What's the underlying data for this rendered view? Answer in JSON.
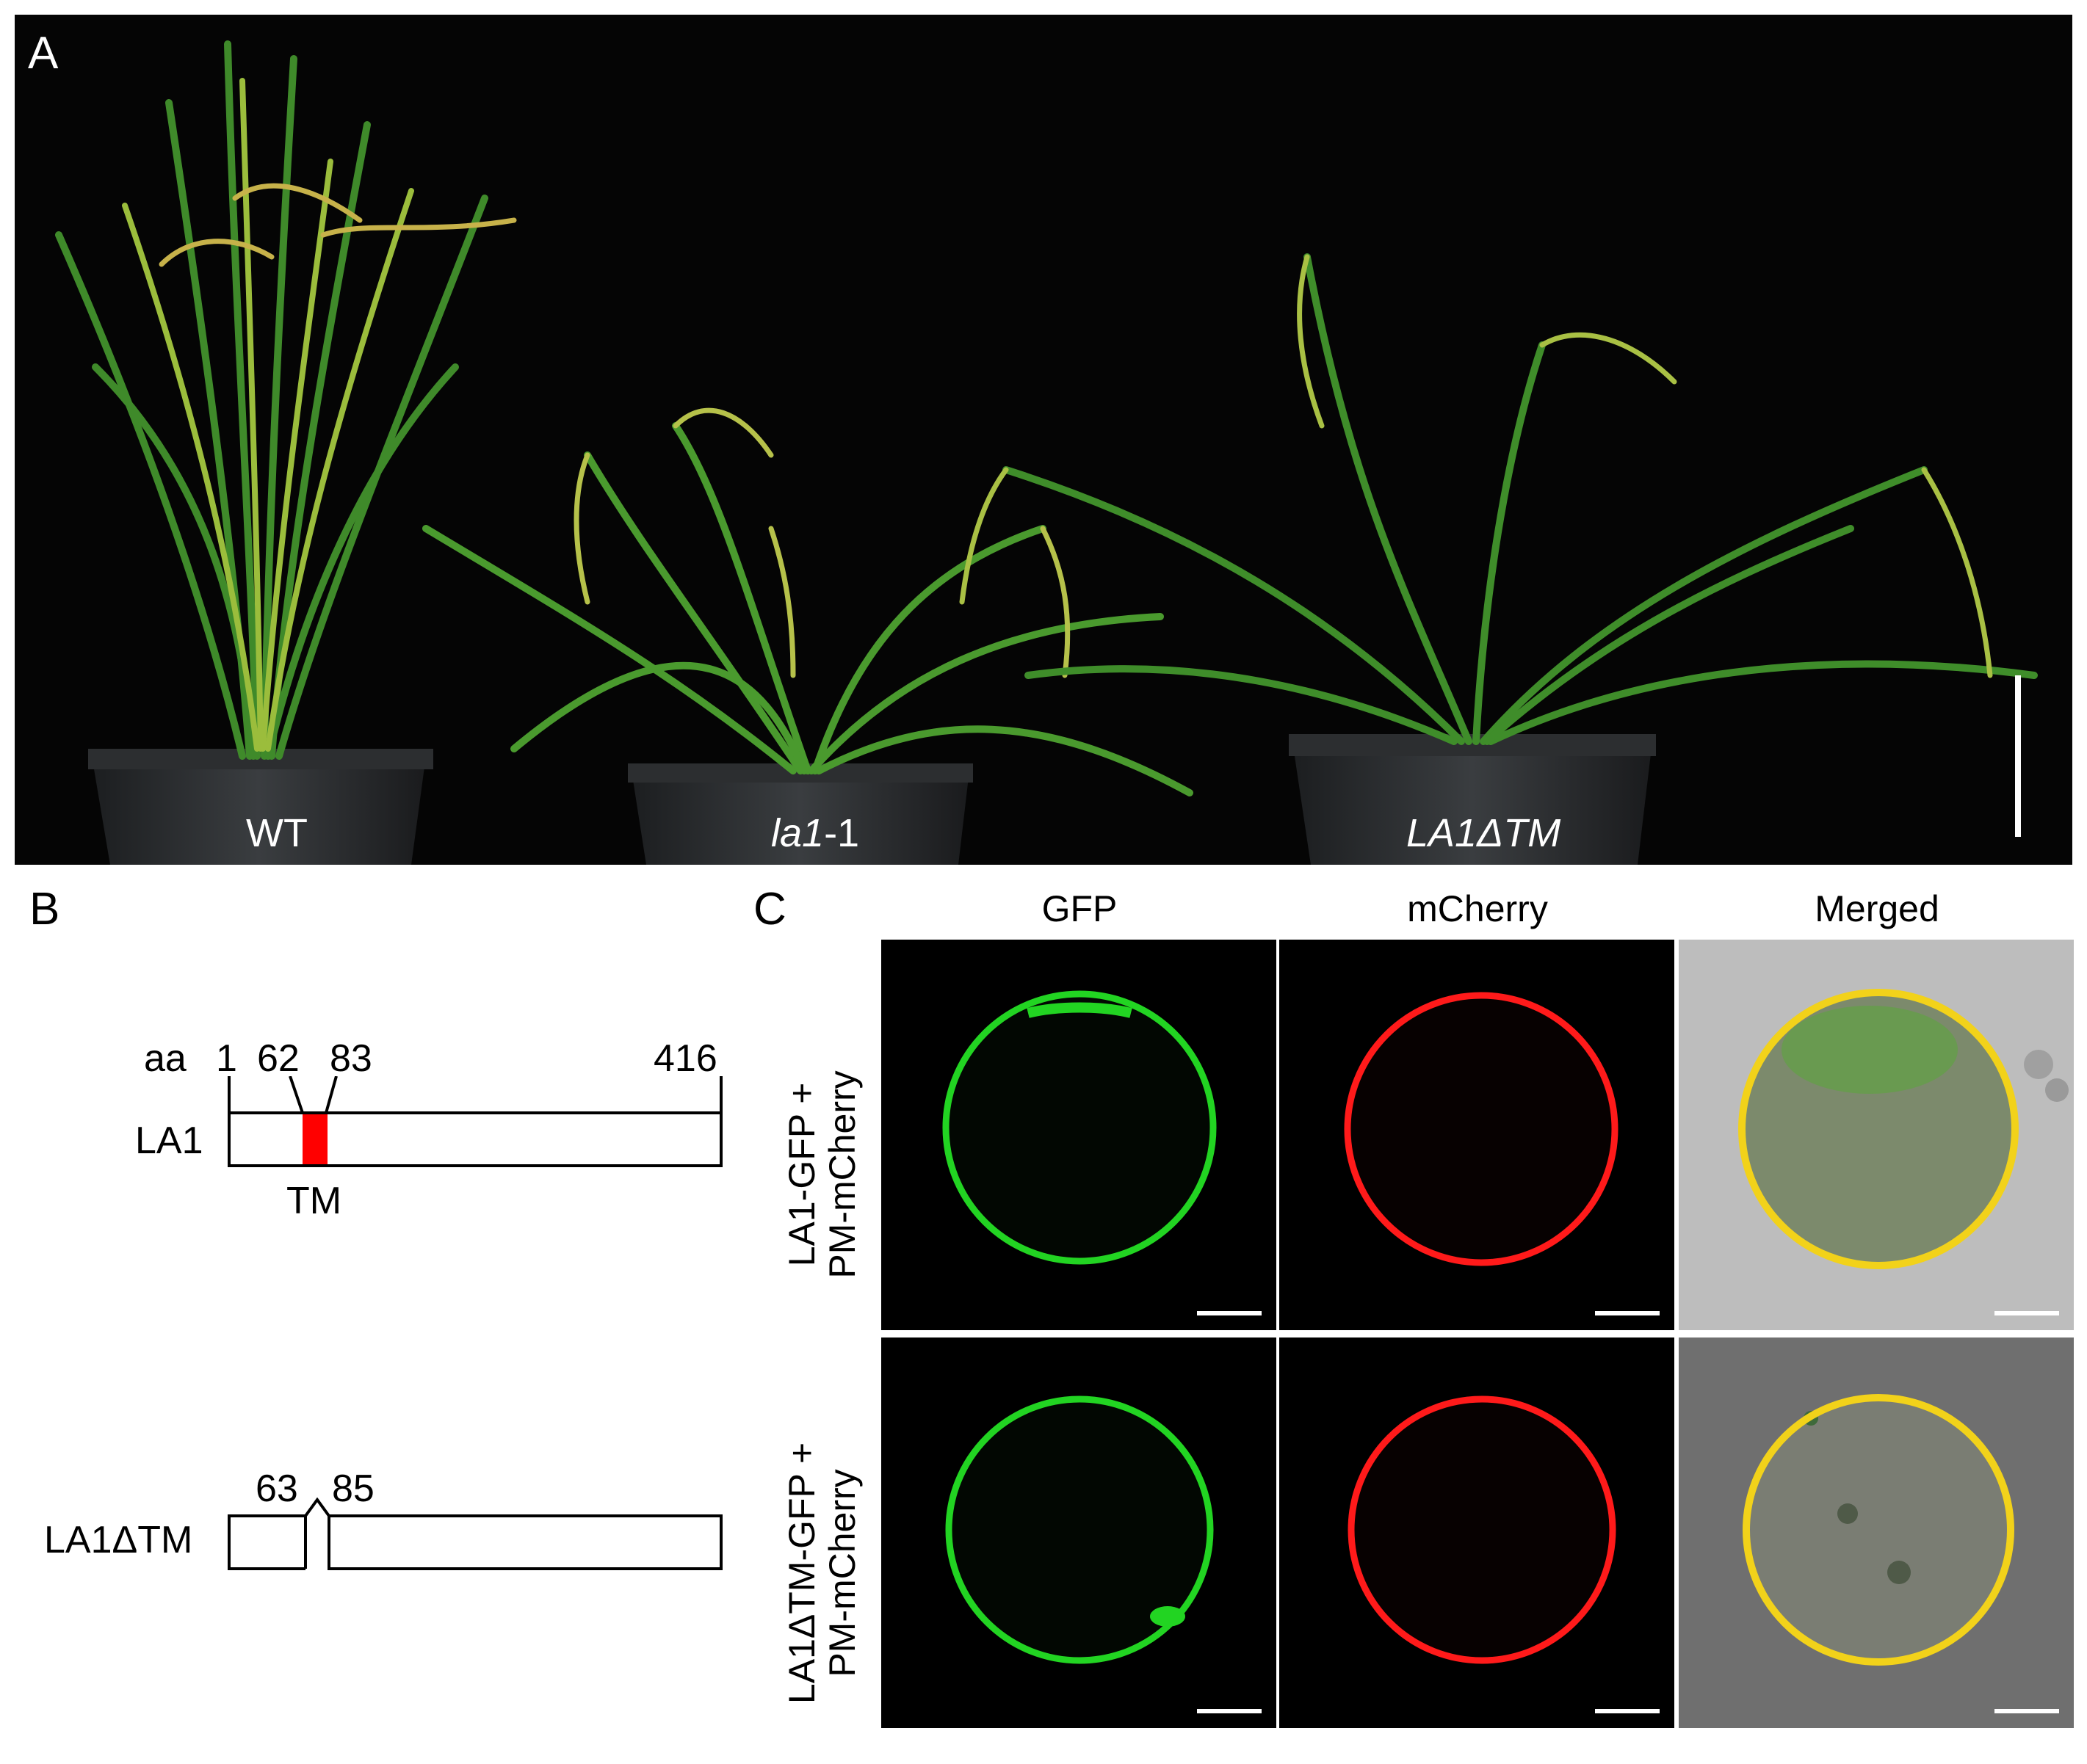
{
  "panel_a": {
    "letter": "A",
    "plants": [
      {
        "name": "WT",
        "italic": false
      },
      {
        "name_italic": "la1",
        "name_suffix": "-1"
      },
      {
        "name": "LA1ΔTM",
        "italic": true
      }
    ]
  },
  "panel_b": {
    "letter": "B",
    "la1_diagram": {
      "label": "LA1",
      "aa_prefix": "aa",
      "positions": [
        "1",
        "62",
        "83",
        "416"
      ],
      "domain_label": "TM",
      "domain_color": "#ff0000"
    },
    "la1dtm_diagram": {
      "label": "LA1ΔTM",
      "positions": [
        "63",
        "85"
      ]
    }
  },
  "panel_c": {
    "letter": "C",
    "columns": [
      "GFP",
      "mCherry",
      "Merged"
    ],
    "rows": [
      {
        "line1": "LA1-GFP +",
        "line2": "PM-mCherry"
      },
      {
        "line1": "LA1ΔTM-GFP +",
        "line2": "PM-mCherry"
      }
    ],
    "colors": {
      "gfp": "#22d422",
      "mcherry": "#ff1a1a",
      "merged_ring": "#f2d21a"
    }
  }
}
